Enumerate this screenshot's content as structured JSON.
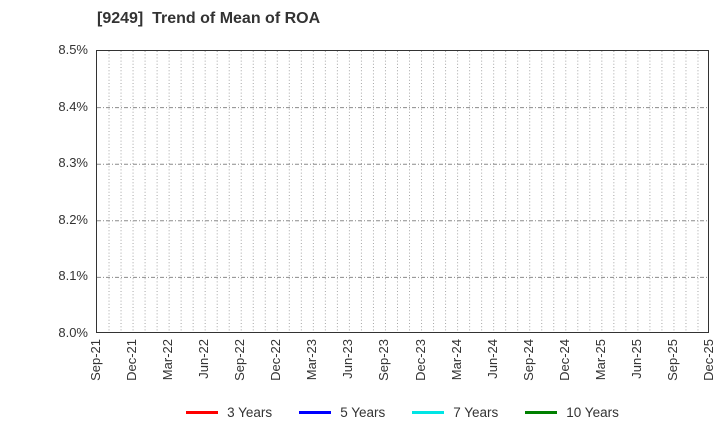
{
  "chart_data": {
    "type": "line",
    "title": "[9249]  Trend of Mean of ROA",
    "xlabel": "",
    "ylabel": "",
    "ylim": [
      8.0,
      8.5
    ],
    "y_tick_labels": [
      "8.0%",
      "8.1%",
      "8.2%",
      "8.3%",
      "8.4%",
      "8.5%"
    ],
    "x_tick_labels": [
      "Sep-21",
      "Dec-21",
      "Mar-22",
      "Jun-22",
      "Sep-22",
      "Dec-22",
      "Mar-23",
      "Jun-23",
      "Sep-23",
      "Dec-23",
      "Mar-24",
      "Jun-24",
      "Sep-24",
      "Dec-24",
      "Mar-25",
      "Jun-25",
      "Sep-25",
      "Dec-25"
    ],
    "x_months_span": 51,
    "x_months_per_tick": 3,
    "grid": {
      "horizontal_style": "dash-dot",
      "horizontal_color": "#8c8c8c",
      "vertical_style": "dotted",
      "vertical_color": "#a6a6a6"
    },
    "axes_color": "#333333",
    "legend_position": "bottom",
    "series": [
      {
        "name": "3 Years",
        "color": "#ff0000",
        "values": []
      },
      {
        "name": "5 Years",
        "color": "#0000ff",
        "values": []
      },
      {
        "name": "7 Years",
        "color": "#00e5e5",
        "values": []
      },
      {
        "name": "10 Years",
        "color": "#008000",
        "values": []
      }
    ]
  }
}
